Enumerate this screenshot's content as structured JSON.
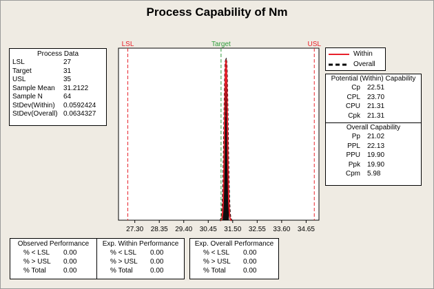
{
  "title": "Process Capability of Nm",
  "process_data": {
    "title": "Process Data",
    "rows": [
      {
        "label": "LSL",
        "value": "27"
      },
      {
        "label": "Target",
        "value": "31"
      },
      {
        "label": "USL",
        "value": "35"
      },
      {
        "label": "Sample Mean",
        "value": "31.2122"
      },
      {
        "label": "Sample N",
        "value": "64"
      },
      {
        "label": "StDev(Within)",
        "value": "0.0592424"
      },
      {
        "label": "StDev(Overall)",
        "value": "0.0634327"
      }
    ]
  },
  "legend": {
    "within": "Within",
    "overall": "Overall",
    "within_color": "#e8202a",
    "overall_color": "#000000"
  },
  "capability": {
    "potential_title": "Potential (Within) Capability",
    "potential": [
      {
        "label": "Cp",
        "value": "22.51"
      },
      {
        "label": "CPL",
        "value": "23.70"
      },
      {
        "label": "CPU",
        "value": "21.31"
      },
      {
        "label": "Cpk",
        "value": "21.31"
      }
    ],
    "overall_title": "Overall Capability",
    "overall": [
      {
        "label": "Pp",
        "value": "21.02"
      },
      {
        "label": "PPL",
        "value": "22.13"
      },
      {
        "label": "PPU",
        "value": "19.90"
      },
      {
        "label": "Ppk",
        "value": "19.90"
      },
      {
        "label": "Cpm",
        "value": "5.98"
      }
    ]
  },
  "performance": {
    "observed": {
      "title": "Observed Performance",
      "rows": [
        {
          "label": "% < LSL",
          "value": "0.00"
        },
        {
          "label": "% > USL",
          "value": "0.00"
        },
        {
          "label": "% Total",
          "value": "0.00"
        }
      ]
    },
    "exp_within": {
      "title": "Exp. Within Performance",
      "rows": [
        {
          "label": "% < LSL",
          "value": "0.00"
        },
        {
          "label": "% > USL",
          "value": "0.00"
        },
        {
          "label": "% Total",
          "value": "0.00"
        }
      ]
    },
    "exp_overall": {
      "title": "Exp. Overall Performance",
      "rows": [
        {
          "label": "% < LSL",
          "value": "0.00"
        },
        {
          "label": "% > USL",
          "value": "0.00"
        },
        {
          "label": "% Total",
          "value": "0.00"
        }
      ]
    }
  },
  "chart_data": {
    "type": "bar",
    "title": "Process Capability of Nm",
    "xlim": [
      26.6,
      35.2
    ],
    "x_ticks": [
      "27.30",
      "28.35",
      "29.40",
      "30.45",
      "31.50",
      "32.55",
      "33.60",
      "34.65"
    ],
    "x_tick_values": [
      27.3,
      28.35,
      29.4,
      30.45,
      31.5,
      32.55,
      33.6,
      34.65
    ],
    "spec_lines": [
      {
        "label": "LSL",
        "value": 27,
        "color": "#e8202a"
      },
      {
        "label": "Target",
        "value": 31,
        "color": "#2e9b3a"
      },
      {
        "label": "USL",
        "value": 35,
        "color": "#e8202a"
      }
    ],
    "histogram": {
      "bin_width": 0.02,
      "bins": [
        {
          "x": 31.08,
          "count": 1
        },
        {
          "x": 31.1,
          "count": 2
        },
        {
          "x": 31.12,
          "count": 2
        },
        {
          "x": 31.14,
          "count": 4
        },
        {
          "x": 31.16,
          "count": 5
        },
        {
          "x": 31.18,
          "count": 7
        },
        {
          "x": 31.2,
          "count": 10
        },
        {
          "x": 31.22,
          "count": 11
        },
        {
          "x": 31.24,
          "count": 8
        },
        {
          "x": 31.26,
          "count": 6
        },
        {
          "x": 31.28,
          "count": 4
        },
        {
          "x": 31.3,
          "count": 3
        },
        {
          "x": 31.32,
          "count": 1
        }
      ]
    },
    "mean": 31.2122,
    "stdev_within": 0.0592424,
    "stdev_overall": 0.0634327
  }
}
